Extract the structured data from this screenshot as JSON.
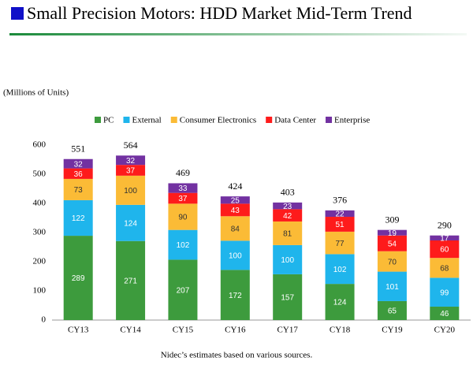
{
  "title": "Small Precision Motors: HDD Market Mid-Term Trend",
  "footnote": "Nidec’s estimates based on various sources.",
  "chart_data": {
    "type": "bar",
    "stacked": true,
    "y_label": "(Millions of Units)",
    "categories": [
      "CY13",
      "CY14",
      "CY15",
      "CY16",
      "CY17",
      "CY18",
      "CY19",
      "CY20"
    ],
    "series": [
      {
        "name": "PC",
        "color": "#3d9b3d",
        "label_color": "#ffffff",
        "values": [
          289,
          271,
          207,
          172,
          157,
          124,
          65,
          46
        ]
      },
      {
        "name": "External",
        "color": "#1fb5ec",
        "label_color": "#ffffff",
        "values": [
          122,
          124,
          102,
          100,
          100,
          102,
          101,
          99
        ]
      },
      {
        "name": "Consumer Electronics",
        "color": "#fbbb36",
        "label_color": "#333333",
        "values": [
          73,
          100,
          90,
          84,
          81,
          77,
          70,
          68
        ]
      },
      {
        "name": "Data Center",
        "color": "#fe1b1b",
        "label_color": "#ffffff",
        "values": [
          36,
          37,
          37,
          43,
          42,
          51,
          54,
          60
        ]
      },
      {
        "name": "Enterprise",
        "color": "#7231a1",
        "label_color": "#ffffff",
        "values": [
          32,
          32,
          33,
          25,
          23,
          22,
          19,
          17
        ]
      }
    ],
    "totals": [
      551,
      564,
      469,
      424,
      403,
      376,
      309,
      290
    ],
    "ylim": [
      0,
      600
    ],
    "yticks": [
      0,
      100,
      200,
      300,
      400,
      500,
      600
    ],
    "legend": "top"
  }
}
